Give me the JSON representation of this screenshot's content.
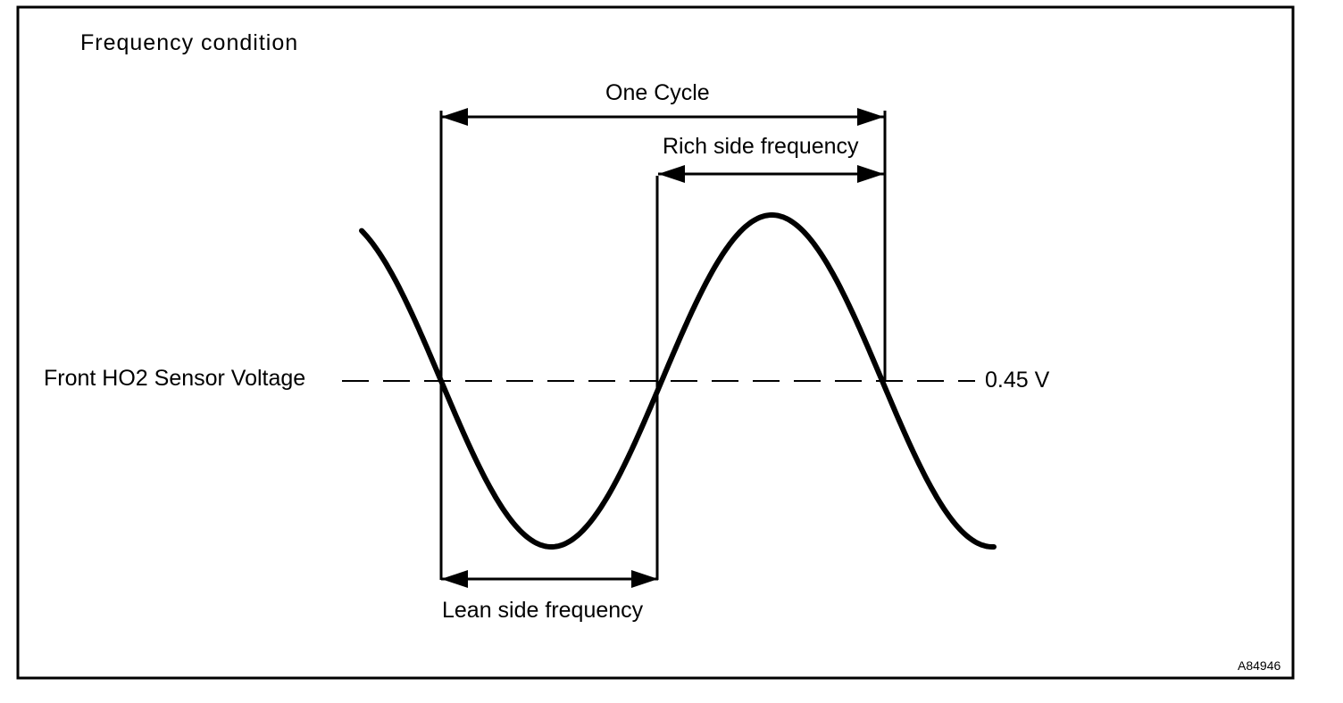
{
  "title": "Frequency condition",
  "labels": {
    "one_cycle": "One Cycle",
    "rich_side": "Rich side frequency",
    "lean_side": "Lean side frequency",
    "sensor_voltage": "Front HO2 Sensor Voltage",
    "threshold": "0.45 V"
  },
  "figure_code": "A84946",
  "colors": {
    "ink": "#000000",
    "background": "#ffffff"
  }
}
